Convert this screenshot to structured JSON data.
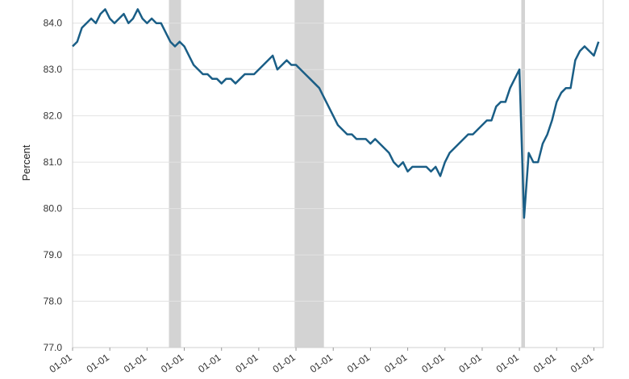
{
  "chart_data": {
    "type": "line",
    "y_label": "Percent",
    "color": "#1a5e86",
    "recession_color": "#d3d3d3",
    "recessions": [
      [
        20.7,
        23.3
      ],
      [
        47.7,
        54.0
      ],
      [
        96.4,
        97.2
      ]
    ],
    "values": [
      83.5,
      83.6,
      83.9,
      84.0,
      84.1,
      84.0,
      84.2,
      84.3,
      84.1,
      84.0,
      84.1,
      84.2,
      84.0,
      84.1,
      84.3,
      84.1,
      84.0,
      84.1,
      84.0,
      84.0,
      83.8,
      83.6,
      83.5,
      83.6,
      83.5,
      83.3,
      83.1,
      83.0,
      82.9,
      82.9,
      82.8,
      82.8,
      82.7,
      82.8,
      82.8,
      82.7,
      82.8,
      82.9,
      82.9,
      82.9,
      83.0,
      83.1,
      83.2,
      83.3,
      83.0,
      83.1,
      83.2,
      83.1,
      83.1,
      83.0,
      82.9,
      82.8,
      82.7,
      82.6,
      82.4,
      82.2,
      82.0,
      81.8,
      81.7,
      81.6,
      81.6,
      81.5,
      81.5,
      81.5,
      81.4,
      81.5,
      81.4,
      81.3,
      81.2,
      81.0,
      80.9,
      81.0,
      80.8,
      80.9,
      80.9,
      80.9,
      80.9,
      80.8,
      80.9,
      80.7,
      81.0,
      81.2,
      81.3,
      81.4,
      81.5,
      81.6,
      81.6,
      81.7,
      81.8,
      81.9,
      81.9,
      82.2,
      82.3,
      82.3,
      82.6,
      82.8,
      83.0,
      79.8,
      81.2,
      81.0,
      81.0,
      81.4,
      81.6,
      81.9,
      82.3,
      82.5,
      82.6,
      82.6,
      83.2,
      83.4,
      83.5,
      83.4,
      83.3,
      83.6
    ],
    "xlim": [
      0,
      114
    ],
    "xticks": [
      {
        "value": 0,
        "label": "01-01"
      },
      {
        "value": 8,
        "label": "01-01"
      },
      {
        "value": 16,
        "label": "01-01"
      },
      {
        "value": 24,
        "label": "01-01"
      },
      {
        "value": 32,
        "label": "01-01"
      },
      {
        "value": 40,
        "label": "01-01"
      },
      {
        "value": 48,
        "label": "01-01"
      },
      {
        "value": 56,
        "label": "01-01"
      },
      {
        "value": 64,
        "label": "01-01"
      },
      {
        "value": 72,
        "label": "01-01"
      },
      {
        "value": 80,
        "label": "01-01"
      },
      {
        "value": 88,
        "label": "01-01"
      },
      {
        "value": 96,
        "label": "01-01"
      },
      {
        "value": 104,
        "label": "01-01"
      },
      {
        "value": 112,
        "label": "01-01"
      }
    ],
    "ylim": [
      77,
      84.5
    ],
    "yticks": [
      {
        "value": 77,
        "label": "77.0"
      },
      {
        "value": 78,
        "label": "78.0"
      },
      {
        "value": 79,
        "label": "79.0"
      },
      {
        "value": 80,
        "label": "80.0"
      },
      {
        "value": 81,
        "label": "81.0"
      },
      {
        "value": 82,
        "label": "82.0"
      },
      {
        "value": 83,
        "label": "83.0"
      },
      {
        "value": 84,
        "label": "84.0"
      }
    ],
    "grid": true
  }
}
